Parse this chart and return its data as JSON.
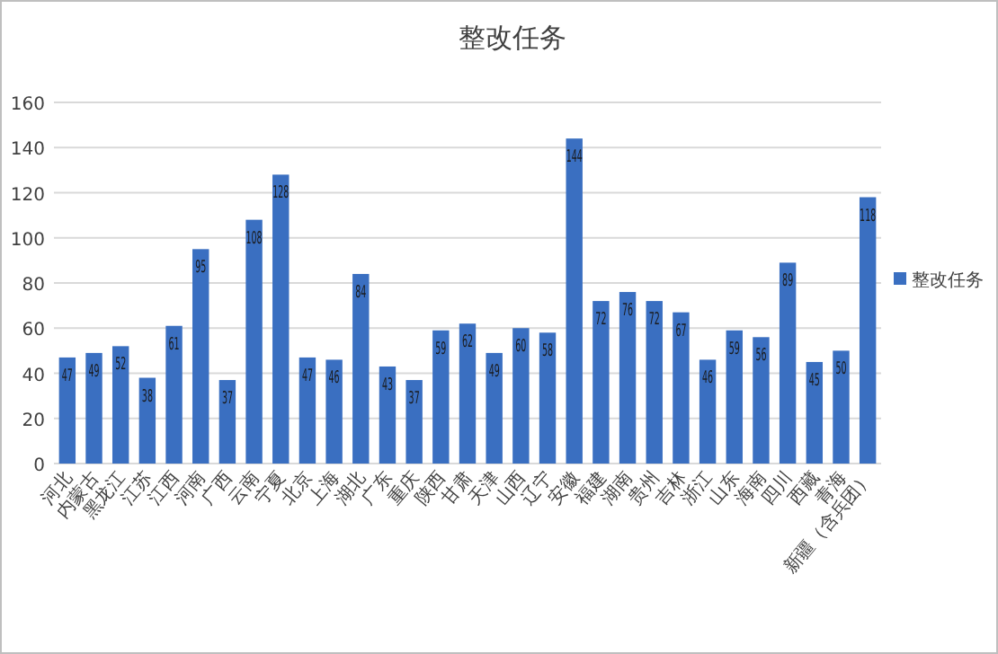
{
  "chart_data": {
    "type": "bar",
    "title": "整改任务",
    "categories": [
      "河北",
      "内蒙古",
      "黑龙江",
      "江苏",
      "江西",
      "河南",
      "广西",
      "云南",
      "宁夏",
      "北京",
      "上海",
      "湖北",
      "广东",
      "重庆",
      "陕西",
      "甘肃",
      "天津",
      "山西",
      "辽宁",
      "安徽",
      "福建",
      "湖南",
      "贵州",
      "吉林",
      "浙江",
      "山东",
      "海南",
      "四川",
      "西藏",
      "青海",
      "新疆（含兵团）"
    ],
    "series": [
      {
        "name": "整改任务",
        "color": "#3a6fc1",
        "values": [
          47,
          49,
          52,
          38,
          61,
          95,
          37,
          108,
          128,
          47,
          46,
          84,
          43,
          37,
          59,
          62,
          49,
          60,
          58,
          144,
          72,
          76,
          72,
          67,
          46,
          59,
          56,
          89,
          45,
          50,
          118
        ]
      }
    ],
    "ylim": [
      0,
      160
    ],
    "yticks": [
      0,
      20,
      40,
      60,
      80,
      100,
      120,
      140,
      160
    ],
    "grid": "y",
    "legend": "right",
    "data_labels": true
  }
}
